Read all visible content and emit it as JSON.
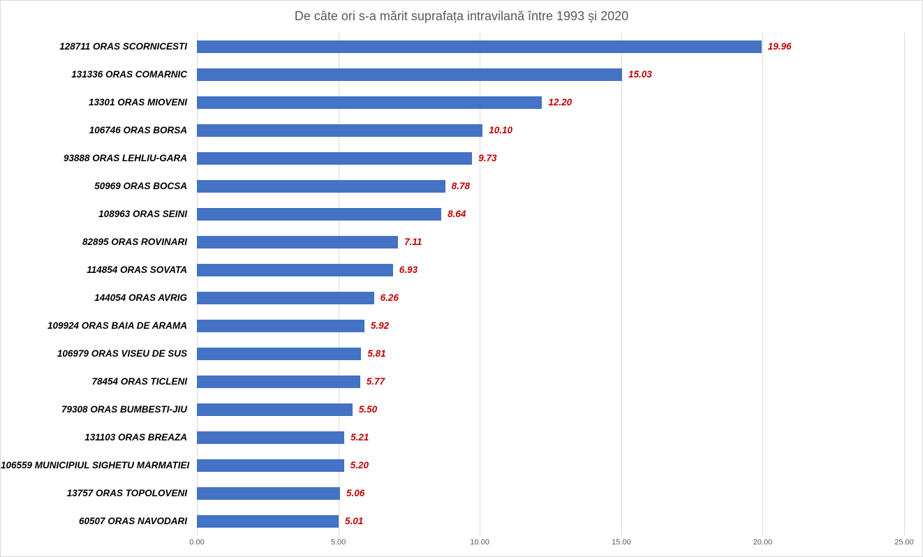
{
  "chart_data": {
    "type": "bar",
    "orientation": "horizontal",
    "title": "De câte ori s-a mărit suprafața intravilană între 1993 și 2020",
    "categories": [
      "128711 ORAS SCORNICESTI",
      "131336 ORAS COMARNIC",
      "13301 ORAS MIOVENI",
      "106746 ORAS BORSA",
      "93888 ORAS LEHLIU-GARA",
      "50969 ORAS BOCSA",
      "108963 ORAS SEINI",
      "82895 ORAS ROVINARI",
      "114854 ORAS SOVATA",
      "144054 ORAS AVRIG",
      "109924 ORAS BAIA DE ARAMA",
      "106979 ORAS VISEU DE SUS",
      "78454 ORAS TICLENI",
      "79308 ORAS BUMBESTI-JIU",
      "131103 ORAS BREAZA",
      "106559 MUNICIPIUL SIGHETU MARMATIEI",
      "13757 ORAS TOPOLOVENI",
      "60507 ORAS NAVODARI"
    ],
    "values": [
      19.96,
      15.03,
      12.2,
      10.1,
      9.73,
      8.78,
      8.64,
      7.11,
      6.93,
      6.26,
      5.92,
      5.81,
      5.77,
      5.5,
      5.21,
      5.2,
      5.06,
      5.01
    ],
    "value_labels": [
      "19.96",
      "15.03",
      "12.20",
      "10.10",
      "9.73",
      "8.78",
      "8.64",
      "7.11",
      "6.93",
      "6.26",
      "5.92",
      "5.81",
      "5.77",
      "5.50",
      "5.21",
      "5.20",
      "5.06",
      "5.01"
    ],
    "xlabel": "",
    "ylabel": "",
    "xlim": [
      0,
      25
    ],
    "x_ticks": [
      "0.00",
      "5.00",
      "10.00",
      "15.00",
      "20.00",
      "25.00"
    ],
    "x_tick_values": [
      0,
      5,
      10,
      15,
      20,
      25
    ],
    "grid": true,
    "legend": false,
    "colors": {
      "bar": "#4472c4",
      "value_label": "#c00000",
      "title": "#595959",
      "axis_text": "#595959",
      "gridline": "#d9d9d9",
      "category_label": "#000000",
      "background": "#ffffff"
    }
  }
}
